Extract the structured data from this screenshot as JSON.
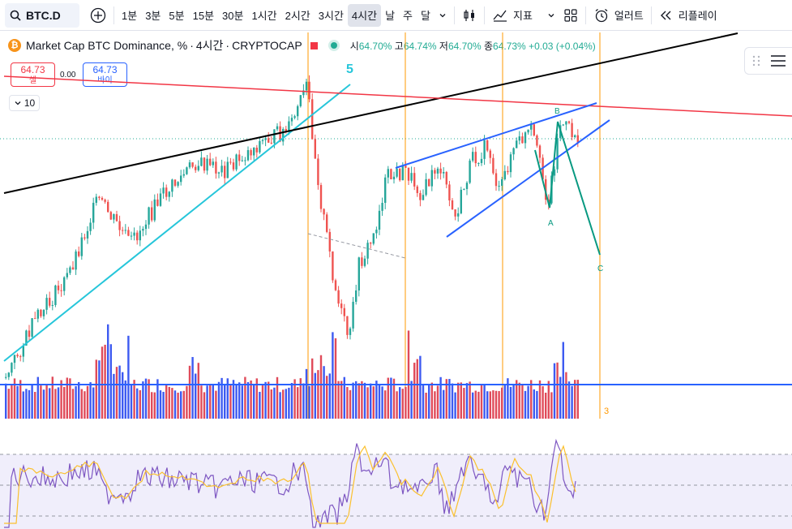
{
  "toolbar": {
    "symbol": "BTC.D",
    "intervals": [
      "1분",
      "3분",
      "5분",
      "15분",
      "30분",
      "1시간",
      "2시간",
      "3시간",
      "4시간",
      "날",
      "주",
      "달"
    ],
    "active_interval": "4시간",
    "indicators_label": "지표",
    "alerts_label": "얼러트",
    "replay_label": "리플레이"
  },
  "legend": {
    "coin_symbol": "₿",
    "title": "Market Cap BTC Dominance, %",
    "interval": "4시간",
    "source": "CRYPTOCAP",
    "open_label": "시",
    "open": "64.70%",
    "high_label": "고",
    "high": "64.74%",
    "low_label": "저",
    "low": "64.70%",
    "close_label": "종",
    "close": "64.73%",
    "change": "+0.03 (+0.04%)"
  },
  "trade": {
    "sell_price": "64.73",
    "sell_label": "셀",
    "buy_price": "64.73",
    "buy_label": "바이",
    "spread": "0.00",
    "quantity": "10"
  },
  "annotations": {
    "wave5": "5",
    "b": "B",
    "a": "A",
    "c": "C",
    "three": "3"
  },
  "colors": {
    "up": "#26a69a",
    "down": "#ef5350",
    "cyan_trend": "#26c6da",
    "black_trend": "#000000",
    "red_trend": "#f23645",
    "wedge": "#2962ff",
    "wave_green": "#089981",
    "orange_vline": "#ff9800",
    "rsi": "#7e57c2",
    "rsi_ma": "#fbc02d",
    "rsi_band": "#f0eefb"
  }
}
